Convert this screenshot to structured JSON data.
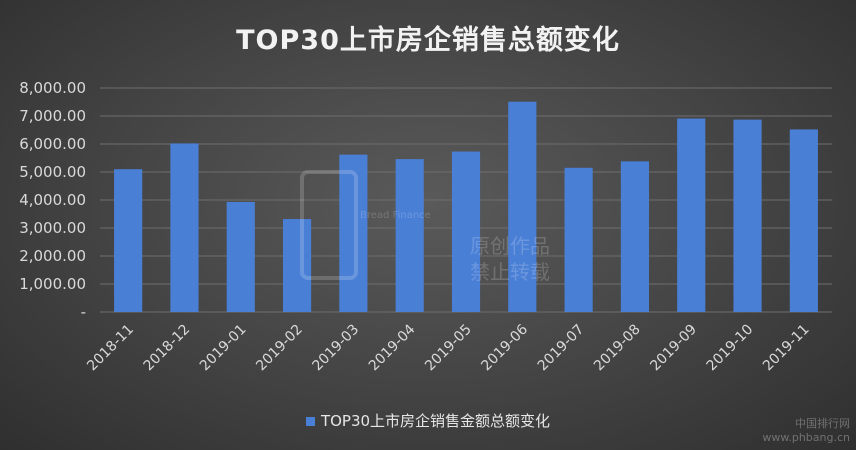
{
  "chart_data": {
    "type": "bar",
    "title": "TOP30上市房企销售总额变化",
    "categories": [
      "2018-11",
      "2018-12",
      "2019-01",
      "2019-02",
      "2019-03",
      "2019-04",
      "2019-05",
      "2019-06",
      "2019-07",
      "2019-08",
      "2019-09",
      "2019-10",
      "2019-11"
    ],
    "series": [
      {
        "name": "TOP30上市房企销售金额总额变化",
        "values": [
          5100,
          6020,
          3930,
          3320,
          5620,
          5460,
          5730,
          7510,
          5150,
          5380,
          6910,
          6870,
          6520
        ]
      }
    ],
    "ylim": [
      0,
      8000
    ],
    "yticks": [
      "-",
      "1,000.00",
      "2,000.00",
      "3,000.00",
      "4,000.00",
      "5,000.00",
      "6,000.00",
      "7,000.00",
      "8,000.00"
    ],
    "grid": true,
    "legend": "bottom",
    "bar_color": "#4a7fd6"
  },
  "watermark": {
    "english": "Bread Finance",
    "line1": "原创作品",
    "line2": "禁止转载"
  },
  "corner": {
    "site_cn": "中国排行网",
    "site_url": "www.phbang.cn"
  }
}
